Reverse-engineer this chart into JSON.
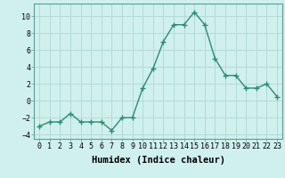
{
  "x": [
    0,
    1,
    2,
    3,
    4,
    5,
    6,
    7,
    8,
    9,
    10,
    11,
    12,
    13,
    14,
    15,
    16,
    17,
    18,
    19,
    20,
    21,
    22,
    23
  ],
  "y": [
    -3.0,
    -2.5,
    -2.5,
    -1.5,
    -2.5,
    -2.5,
    -2.5,
    -3.5,
    -2.0,
    -2.0,
    1.5,
    3.8,
    7.0,
    9.0,
    9.0,
    10.5,
    9.0,
    5.0,
    3.0,
    3.0,
    1.5,
    1.5,
    2.0,
    0.5
  ],
  "line_color": "#2e8b70",
  "marker": "+",
  "marker_size": 4,
  "line_width": 1.0,
  "xlabel": "Humidex (Indice chaleur)",
  "xlim": [
    -0.5,
    23.5
  ],
  "ylim": [
    -4.5,
    11.5
  ],
  "yticks": [
    -4,
    -2,
    0,
    2,
    4,
    6,
    8,
    10
  ],
  "xticks": [
    0,
    1,
    2,
    3,
    4,
    5,
    6,
    7,
    8,
    9,
    10,
    11,
    12,
    13,
    14,
    15,
    16,
    17,
    18,
    19,
    20,
    21,
    22,
    23
  ],
  "xtick_labels": [
    "0",
    "1",
    "2",
    "3",
    "4",
    "5",
    "6",
    "7",
    "8",
    "9",
    "10",
    "11",
    "12",
    "13",
    "14",
    "15",
    "16",
    "17",
    "18",
    "19",
    "20",
    "21",
    "22",
    "23"
  ],
  "background_color": "#cff0ec",
  "grid_color": "#b0d8d4",
  "tick_fontsize": 6,
  "label_fontsize": 7.5
}
